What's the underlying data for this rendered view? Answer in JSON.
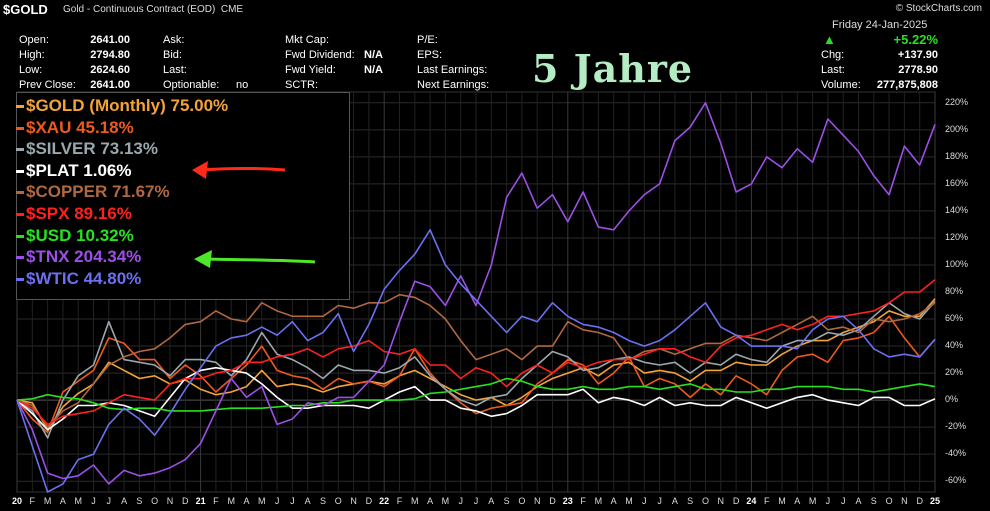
{
  "header": {
    "symbol": "$GOLD",
    "description": "Gold - Continuous Contract (EOD)",
    "exchange": "CME",
    "brand": "© StockCharts.com",
    "date": "Friday  24-Jan-2025",
    "change_pct": "+5.22%",
    "fields": [
      {
        "label": "Open:",
        "value": "2641.00"
      },
      {
        "label": "High:",
        "value": "2794.80"
      },
      {
        "label": "Low:",
        "value": "2624.60"
      },
      {
        "label": "Prev Close:",
        "value": "2641.00"
      }
    ],
    "fields2": [
      {
        "label": "Ask:",
        "value": ""
      },
      {
        "label": "Bid:",
        "value": ""
      },
      {
        "label": "Last:",
        "value": ""
      },
      {
        "label": "Optionable:",
        "value": "no"
      }
    ],
    "fields3": [
      {
        "label": "Mkt Cap:",
        "value": ""
      },
      {
        "label": "Fwd Dividend:",
        "value": "N/A"
      },
      {
        "label": "Fwd Yield:",
        "value": "N/A"
      },
      {
        "label": "SCTR:",
        "value": ""
      }
    ],
    "fields4": [
      {
        "label": "P/E:"
      },
      {
        "label": "EPS:"
      },
      {
        "label": "Last Earnings:"
      },
      {
        "label": "Next Earnings:"
      }
    ],
    "fields5": [
      {
        "label": "Chg:",
        "value": "+137.90"
      },
      {
        "label": "Last:",
        "value": "2778.90"
      },
      {
        "label": "Volume:",
        "value": "277,875,808"
      }
    ]
  },
  "headline": "5 Jahre",
  "chart_data": {
    "type": "line",
    "x": [
      "2020-01",
      "2020-02",
      "2020-03",
      "2020-04",
      "2020-05",
      "2020-06",
      "2020-07",
      "2020-08",
      "2020-09",
      "2020-10",
      "2020-11",
      "2020-12",
      "2021-01",
      "2021-02",
      "2021-03",
      "2021-04",
      "2021-05",
      "2021-06",
      "2021-07",
      "2021-08",
      "2021-09",
      "2021-10",
      "2021-11",
      "2021-12",
      "2022-01",
      "2022-02",
      "2022-03",
      "2022-04",
      "2022-05",
      "2022-06",
      "2022-07",
      "2022-08",
      "2022-09",
      "2022-10",
      "2022-11",
      "2022-12",
      "2023-01",
      "2023-02",
      "2023-03",
      "2023-04",
      "2023-05",
      "2023-06",
      "2023-07",
      "2023-08",
      "2023-09",
      "2023-10",
      "2023-11",
      "2023-12",
      "2024-01",
      "2024-02",
      "2024-03",
      "2024-04",
      "2024-05",
      "2024-06",
      "2024-07",
      "2024-08",
      "2024-09",
      "2024-10",
      "2024-11",
      "2024-12",
      "2025-01"
    ],
    "x_tick_labels": [
      "20",
      "F",
      "M",
      "A",
      "M",
      "J",
      "J",
      "A",
      "S",
      "O",
      "N",
      "D",
      "21",
      "F",
      "M",
      "A",
      "M",
      "J",
      "J",
      "A",
      "S",
      "O",
      "N",
      "D",
      "22",
      "F",
      "M",
      "A",
      "M",
      "J",
      "J",
      "A",
      "S",
      "O",
      "N",
      "D",
      "23",
      "F",
      "M",
      "A",
      "M",
      "J",
      "J",
      "A",
      "S",
      "O",
      "N",
      "D",
      "24",
      "F",
      "M",
      "A",
      "M",
      "J",
      "J",
      "A",
      "S",
      "O",
      "N",
      "D",
      "25"
    ],
    "y_ticks": [
      -60,
      -40,
      -20,
      0,
      20,
      40,
      60,
      80,
      100,
      120,
      140,
      160,
      180,
      200,
      220
    ],
    "y_tick_labels": [
      "-60%",
      "-40%",
      "-20%",
      "0%",
      "20%",
      "40%",
      "60%",
      "80%",
      "100%",
      "120%",
      "140%",
      "160%",
      "180%",
      "200%",
      "220%"
    ],
    "ylim": [
      -68,
      228
    ],
    "y_unit": "%",
    "grid": true,
    "legend_position": "top-left",
    "series": [
      {
        "name": "$GOLD (Monthly) 75.00%",
        "color": "#f2a33a",
        "values": [
          0,
          -2,
          -22,
          -5,
          5,
          12,
          28,
          22,
          16,
          18,
          12,
          15,
          8,
          4,
          6,
          10,
          22,
          10,
          12,
          10,
          6,
          10,
          12,
          14,
          12,
          18,
          22,
          16,
          10,
          4,
          0,
          2,
          -4,
          2,
          10,
          16,
          20,
          24,
          18,
          26,
          28,
          20,
          22,
          20,
          14,
          22,
          22,
          28,
          26,
          26,
          34,
          40,
          44,
          44,
          50,
          54,
          58,
          66,
          62,
          62,
          75
        ]
      },
      {
        "name": "$XAU 45.18%",
        "color": "#ee5a1e",
        "values": [
          0,
          -14,
          -24,
          6,
          14,
          22,
          46,
          42,
          30,
          30,
          16,
          26,
          18,
          6,
          16,
          26,
          40,
          22,
          18,
          16,
          8,
          16,
          12,
          14,
          10,
          18,
          38,
          20,
          8,
          -2,
          -10,
          -6,
          -4,
          -2,
          12,
          20,
          30,
          26,
          12,
          20,
          32,
          10,
          16,
          12,
          2,
          12,
          4,
          18,
          12,
          4,
          22,
          32,
          34,
          28,
          44,
          46,
          50,
          62,
          46,
          32,
          45
        ]
      },
      {
        "name": "$SILVER 73.13%",
        "color": "#9aa8ad",
        "values": [
          0,
          -8,
          -28,
          0,
          18,
          26,
          58,
          30,
          28,
          26,
          18,
          30,
          30,
          28,
          18,
          30,
          50,
          34,
          30,
          24,
          16,
          26,
          22,
          22,
          20,
          24,
          32,
          18,
          8,
          0,
          -4,
          2,
          4,
          16,
          26,
          36,
          32,
          22,
          24,
          30,
          32,
          28,
          26,
          28,
          20,
          28,
          26,
          34,
          30,
          28,
          40,
          44,
          44,
          50,
          48,
          52,
          62,
          72,
          64,
          60,
          73
        ]
      },
      {
        "name": "$PLAT 1.06%",
        "color": "#ffffff",
        "values": [
          0,
          -10,
          -22,
          -14,
          -4,
          -4,
          -2,
          -4,
          -8,
          -12,
          2,
          16,
          22,
          24,
          22,
          20,
          12,
          2,
          -6,
          -6,
          -4,
          -4,
          -4,
          -6,
          0,
          6,
          10,
          0,
          0,
          -6,
          -8,
          -12,
          -10,
          -4,
          4,
          4,
          4,
          8,
          -2,
          2,
          0,
          -4,
          2,
          -4,
          -2,
          -4,
          -4,
          2,
          -2,
          -6,
          -2,
          2,
          4,
          0,
          -2,
          -4,
          2,
          2,
          -4,
          -4,
          1
        ]
      },
      {
        "name": "$COPPER 71.67%",
        "color": "#b06840",
        "values": [
          0,
          -4,
          -20,
          -8,
          -2,
          12,
          26,
          32,
          36,
          38,
          46,
          56,
          58,
          66,
          60,
          58,
          72,
          66,
          62,
          62,
          62,
          70,
          68,
          72,
          72,
          78,
          76,
          70,
          60,
          44,
          30,
          34,
          38,
          30,
          40,
          40,
          58,
          52,
          50,
          46,
          30,
          36,
          38,
          34,
          38,
          42,
          42,
          48,
          46,
          44,
          50,
          56,
          62,
          52,
          54,
          50,
          60,
          58,
          60,
          64,
          72
        ]
      },
      {
        "name": "$SPX 89.16%",
        "color": "#ff2020",
        "values": [
          0,
          -6,
          -18,
          -12,
          -10,
          -8,
          -2,
          4,
          2,
          0,
          12,
          16,
          16,
          20,
          22,
          28,
          28,
          32,
          34,
          38,
          32,
          38,
          40,
          44,
          36,
          34,
          38,
          26,
          26,
          16,
          24,
          20,
          10,
          20,
          26,
          20,
          28,
          24,
          28,
          30,
          30,
          34,
          38,
          38,
          32,
          28,
          40,
          46,
          48,
          52,
          56,
          52,
          56,
          62,
          62,
          64,
          66,
          72,
          80,
          80,
          89
        ]
      },
      {
        "name": "$USD 10.32%",
        "color": "#28e020",
        "values": [
          0,
          1,
          4,
          2,
          1,
          -2,
          -6,
          -7,
          -6,
          -6,
          -8,
          -8,
          -8,
          -7,
          -6,
          -6,
          -6,
          -5,
          -4,
          -4,
          -2,
          -2,
          0,
          0,
          0,
          0,
          1,
          5,
          6,
          8,
          10,
          12,
          16,
          14,
          10,
          8,
          8,
          10,
          8,
          8,
          10,
          10,
          8,
          10,
          12,
          8,
          8,
          6,
          6,
          8,
          8,
          10,
          10,
          10,
          8,
          8,
          6,
          8,
          10,
          12,
          10
        ]
      },
      {
        "name": "$TNX 204.34%",
        "color": "#9c50e6",
        "values": [
          0,
          -22,
          -54,
          -58,
          -56,
          -48,
          -62,
          -52,
          -56,
          -54,
          -50,
          -44,
          -32,
          -8,
          16,
          2,
          10,
          -18,
          -14,
          -2,
          -4,
          2,
          2,
          14,
          26,
          58,
          88,
          84,
          70,
          92,
          70,
          100,
          150,
          168,
          142,
          152,
          132,
          154,
          128,
          126,
          140,
          152,
          160,
          192,
          202,
          220,
          190,
          154,
          160,
          180,
          172,
          186,
          176,
          208,
          196,
          184,
          166,
          152,
          188,
          174,
          204
        ]
      },
      {
        "name": "$WTIC 44.80%",
        "color": "#6c70f0",
        "values": [
          0,
          -34,
          -68,
          -62,
          -44,
          -40,
          -18,
          -6,
          -14,
          -26,
          -10,
          8,
          24,
          40,
          46,
          48,
          54,
          48,
          58,
          44,
          50,
          64,
          36,
          56,
          82,
          96,
          108,
          126,
          100,
          86,
          74,
          62,
          50,
          62,
          58,
          72,
          62,
          56,
          54,
          50,
          44,
          40,
          44,
          52,
          62,
          72,
          54,
          48,
          40,
          40,
          40,
          38,
          52,
          60,
          62,
          52,
          38,
          32,
          34,
          32,
          45
        ]
      }
    ]
  }
}
